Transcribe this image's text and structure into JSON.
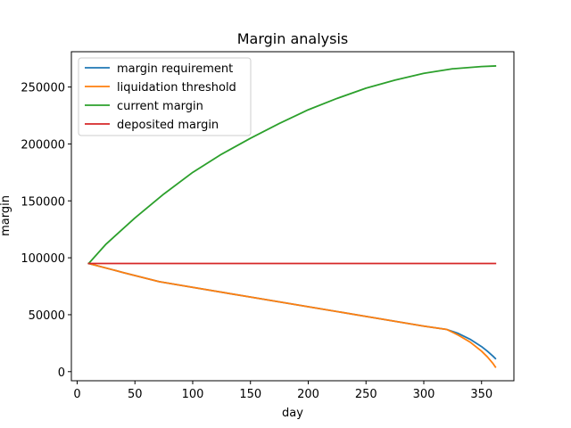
{
  "chart_data": {
    "type": "line",
    "title": "Margin analysis",
    "xlabel": "day",
    "ylabel": "margin",
    "xlim": [
      -5,
      378
    ],
    "ylim": [
      -8000,
      281000
    ],
    "x_ticks": [
      0,
      50,
      100,
      150,
      200,
      250,
      300,
      350
    ],
    "y_ticks": [
      0,
      50000,
      100000,
      150000,
      200000,
      250000
    ],
    "grid": false,
    "legend_position": "upper-left",
    "series": [
      {
        "name": "margin requirement",
        "color": "#1f77b4",
        "x": [
          10,
          40,
          71,
          100,
          150,
          200,
          250,
          300,
          320,
          330,
          340,
          350,
          355,
          360,
          362
        ],
        "y": [
          95000,
          87000,
          79000,
          74000,
          65500,
          57000,
          48500,
          40000,
          37000,
          33500,
          28500,
          22000,
          18000,
          13500,
          11500
        ]
      },
      {
        "name": "liquidation threshold",
        "color": "#ff7f0e",
        "x": [
          10,
          40,
          71,
          100,
          150,
          200,
          250,
          300,
          320,
          330,
          340,
          350,
          355,
          360,
          362
        ],
        "y": [
          95000,
          87000,
          79000,
          74000,
          65500,
          57000,
          48500,
          40000,
          37000,
          32000,
          26000,
          18000,
          13000,
          7000,
          4000
        ]
      },
      {
        "name": "current margin",
        "color": "#2ca02c",
        "x": [
          10,
          25,
          50,
          75,
          100,
          125,
          150,
          175,
          200,
          225,
          250,
          275,
          300,
          325,
          350,
          362
        ],
        "y": [
          95000,
          112000,
          135000,
          156000,
          175000,
          191000,
          205000,
          218000,
          230000,
          240000,
          249000,
          256000,
          262000,
          266000,
          268000,
          268500
        ]
      },
      {
        "name": "deposited margin",
        "color": "#d62728",
        "x": [
          10,
          362
        ],
        "y": [
          95000,
          95000
        ]
      }
    ]
  }
}
